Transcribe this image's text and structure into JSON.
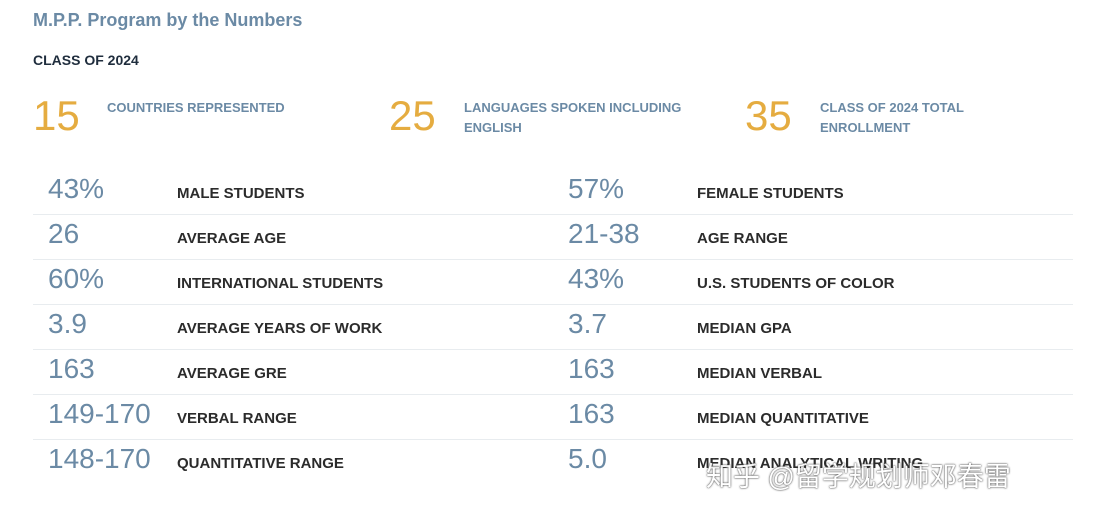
{
  "title": "M.P.P. Program by the Numbers",
  "class_label": "CLASS OF 2024",
  "highlights": [
    {
      "value": "15",
      "label": "COUNTRIES REPRESENTED"
    },
    {
      "value": "25",
      "label": "LANGUAGES SPOKEN INCLUDING ENGLISH"
    },
    {
      "value": "35",
      "label": "CLASS OF 2024 TOTAL ENROLLMENT"
    }
  ],
  "stats_left": [
    {
      "value": "43%",
      "label": "MALE STUDENTS"
    },
    {
      "value": "26",
      "label": "AVERAGE AGE"
    },
    {
      "value": "60%",
      "label": "INTERNATIONAL STUDENTS"
    },
    {
      "value": "3.9",
      "label": "AVERAGE YEARS OF WORK"
    },
    {
      "value": "163",
      "label": "AVERAGE GRE"
    },
    {
      "value": "149-170",
      "label": "VERBAL RANGE"
    },
    {
      "value": "148-170",
      "label": "QUANTITATIVE RANGE"
    }
  ],
  "stats_right": [
    {
      "value": "57%",
      "label": "FEMALE STUDENTS"
    },
    {
      "value": "21-38",
      "label": "AGE RANGE"
    },
    {
      "value": "43%",
      "label": "U.S. STUDENTS OF COLOR"
    },
    {
      "value": "3.7",
      "label": "MEDIAN GPA"
    },
    {
      "value": "163",
      "label": "MEDIAN VERBAL"
    },
    {
      "value": "163",
      "label": "MEDIAN QUANTITATIVE"
    },
    {
      "value": "5.0",
      "label": "MEDIAN ANALYTICAL WRITING"
    }
  ],
  "watermark": "知乎 @留学规划师邓春雷",
  "colors": {
    "title": "#6b8aa5",
    "highlight_number": "#e5ac40",
    "stat_value": "#6b8aa5",
    "stat_label": "#2b2b2b",
    "divider": "#e8ecef"
  }
}
